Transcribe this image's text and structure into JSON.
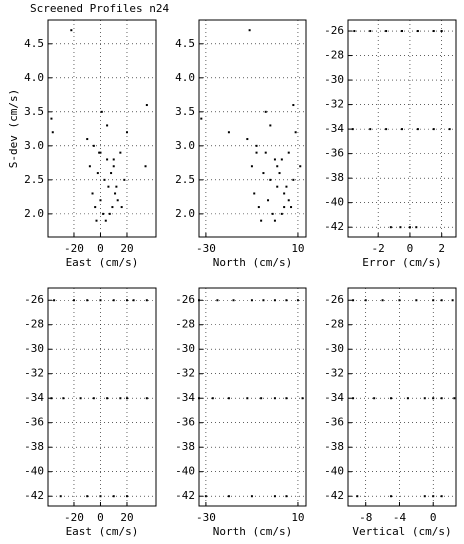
{
  "chart_data": [
    {
      "type": "scatter",
      "title": "Screened Profiles n24",
      "xlabel": "East (cm/s)",
      "ylabel": "S-dev (cm/s)",
      "color": "#000000",
      "grid": true,
      "x": [
        -22,
        -37,
        -36,
        35,
        34,
        -10,
        -5,
        0,
        5,
        10,
        15,
        20,
        -8,
        -2,
        3,
        8,
        12,
        18,
        -6,
        0,
        6,
        11,
        16,
        -4,
        2,
        7,
        13,
        -3,
        4,
        9,
        1,
        5,
        -1,
        10
      ],
      "values": [
        4.7,
        3.4,
        3.2,
        3.6,
        2.7,
        3.1,
        3.0,
        2.9,
        2.8,
        2.8,
        2.9,
        3.2,
        2.7,
        2.6,
        2.5,
        2.6,
        2.4,
        2.5,
        2.3,
        2.2,
        2.4,
        2.3,
        2.1,
        2.1,
        2.0,
        2.0,
        2.2,
        1.9,
        1.9,
        2.1,
        3.5,
        3.3,
        2.9,
        2.7
      ],
      "xlim": [
        -39.6,
        41.9
      ],
      "xticks": [
        -20,
        0,
        20
      ],
      "ylim": [
        1.66,
        4.85
      ],
      "yticks": [
        {
          "value": 2,
          "label": "2.0"
        },
        2.5,
        {
          "value": 3,
          "label": "3.0"
        },
        3.5,
        {
          "value": 4,
          "label": "4.0"
        },
        4.5
      ]
    },
    {
      "type": "scatter",
      "xlabel": "North (cm/s)",
      "color": "#000000",
      "grid": true,
      "x": [
        -11,
        -32,
        -20,
        8,
        11,
        -12,
        -8,
        -4,
        0,
        3,
        6,
        9,
        -10,
        -5,
        -2,
        2,
        5,
        8,
        -9,
        -3,
        1,
        4,
        7,
        -7,
        -1,
        3,
        6,
        -6,
        0,
        4,
        -4,
        -2,
        -8,
        1
      ],
      "values": [
        4.7,
        3.4,
        3.2,
        3.6,
        2.7,
        3.1,
        3.0,
        2.9,
        2.8,
        2.8,
        2.9,
        3.2,
        2.7,
        2.6,
        2.5,
        2.6,
        2.4,
        2.5,
        2.3,
        2.2,
        2.4,
        2.3,
        2.1,
        2.1,
        2.0,
        2.0,
        2.2,
        1.9,
        1.9,
        2.1,
        3.5,
        3.3,
        2.9,
        2.7
      ],
      "xlim": [
        -33,
        13.5
      ],
      "xticks": [
        -30,
        10
      ],
      "ylim": [
        1.66,
        4.85
      ],
      "yticks": [
        {
          "value": 2,
          "label": "2.0"
        },
        2.5,
        {
          "value": 3,
          "label": "3.0"
        },
        3.5,
        {
          "value": 4,
          "label": "4.0"
        },
        4.5
      ]
    },
    {
      "type": "scatter",
      "xlabel": "Error (cm/s)",
      "color": "#000000",
      "grid": true,
      "x": [
        -3.5,
        -2.5,
        -1.5,
        -0.5,
        0.5,
        1.5,
        2.0,
        -3.6,
        -2.5,
        -1.5,
        -0.5,
        0.5,
        1.5,
        2.5,
        -1.2,
        -0.6,
        0,
        0.4
      ],
      "values": [
        -26,
        -26,
        -26,
        -26,
        -26,
        -26,
        -26,
        -34,
        -34,
        -34,
        -34,
        -34,
        -34,
        -34,
        -42,
        -42,
        -42,
        -42
      ],
      "xlim": [
        -3.9,
        2.9
      ],
      "xticks": [
        -2,
        0,
        2
      ],
      "ylim": [
        -42.8,
        -25.1
      ],
      "yticks": [
        -42,
        -40,
        -38,
        -36,
        -34,
        -32,
        -30,
        -28,
        -26
      ]
    },
    {
      "type": "scatter",
      "xlabel": "East (cm/s)",
      "color": "#000000",
      "grid": true,
      "x": [
        -35,
        -20,
        -10,
        0,
        10,
        20,
        25,
        35,
        -37,
        -28,
        -15,
        -5,
        5,
        15,
        20,
        35,
        -30,
        -10,
        0,
        10,
        20
      ],
      "values": [
        -26,
        -26,
        -26,
        -26,
        -26,
        -26,
        -26,
        -26,
        -34,
        -34,
        -34,
        -34,
        -34,
        -34,
        -34,
        -34,
        -42,
        -42,
        -42,
        -42,
        -42
      ],
      "xlim": [
        -39.6,
        41.9
      ],
      "xticks": [
        -20,
        0,
        20
      ],
      "ylim": [
        -42.8,
        -25.0
      ],
      "yticks": [
        -42,
        -40,
        -38,
        -36,
        -34,
        -32,
        -30,
        -28,
        -26
      ]
    },
    {
      "type": "scatter",
      "xlabel": "North (cm/s)",
      "color": "#000000",
      "grid": true,
      "x": [
        -33,
        -25,
        -18,
        -10,
        -5,
        0,
        5,
        10,
        -33,
        -27,
        -20,
        -12,
        -6,
        0,
        5,
        12,
        -30,
        -20,
        -10,
        0,
        5
      ],
      "values": [
        -26,
        -26,
        -26,
        -26,
        -26,
        -26,
        -26,
        -26,
        -34,
        -34,
        -34,
        -34,
        -34,
        -34,
        -34,
        -34,
        -42,
        -42,
        -42,
        -42,
        -42
      ],
      "xlim": [
        -33,
        13.5
      ],
      "xticks": [
        -30,
        10
      ],
      "ylim": [
        -42.8,
        -25.0
      ],
      "yticks": [
        -42,
        -40,
        -38,
        -36,
        -34,
        -32,
        -30,
        -28,
        -26
      ]
    },
    {
      "type": "scatter",
      "xlabel": "Vertical (cm/s)",
      "color": "#000000",
      "grid": true,
      "x": [
        -9.5,
        -8,
        -6,
        -4,
        -2,
        0,
        1,
        2.3,
        -9.5,
        -7,
        -5,
        -3,
        -1,
        0,
        1,
        2.5,
        -9,
        -5,
        -1,
        0,
        1
      ],
      "values": [
        -26,
        -26,
        -26,
        -26,
        -26,
        -26,
        -26,
        -26,
        -34,
        -34,
        -34,
        -34,
        -34,
        -34,
        -34,
        -34,
        -42,
        -42,
        -42,
        -42,
        -42
      ],
      "xlim": [
        -10.1,
        2.7
      ],
      "xticks": [
        -8,
        -4,
        0
      ],
      "ylim": [
        -42.8,
        -25.0
      ],
      "yticks": [
        -42,
        -40,
        -38,
        -36,
        -34,
        -32,
        -30,
        -28,
        -26
      ]
    }
  ]
}
